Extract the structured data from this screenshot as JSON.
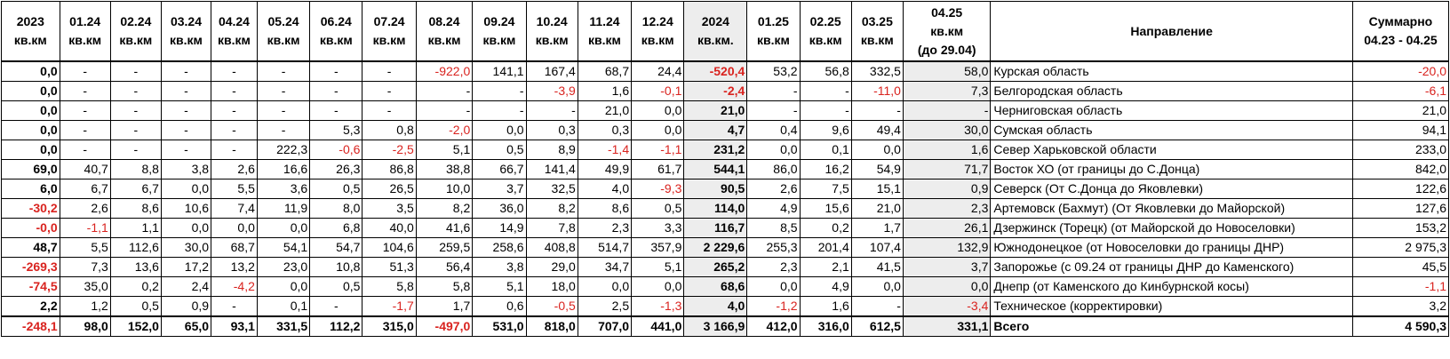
{
  "header": {
    "columns": [
      {
        "lines": [
          "2023",
          "кв.км"
        ]
      },
      {
        "lines": [
          "01.24",
          "кв.км"
        ]
      },
      {
        "lines": [
          "02.24",
          "кв.км"
        ]
      },
      {
        "lines": [
          "03.24",
          "кв.км"
        ]
      },
      {
        "lines": [
          "04.24",
          "кв.км"
        ]
      },
      {
        "lines": [
          "05.24",
          "кв.км"
        ]
      },
      {
        "lines": [
          "06.24",
          "кв.км"
        ]
      },
      {
        "lines": [
          "07.24",
          "кв.км"
        ]
      },
      {
        "lines": [
          "08.24",
          "кв.км"
        ]
      },
      {
        "lines": [
          "09.24",
          "кв.км"
        ]
      },
      {
        "lines": [
          "10.24",
          "кв.км"
        ]
      },
      {
        "lines": [
          "11.24",
          "кв.км"
        ]
      },
      {
        "lines": [
          "12.24",
          "кв.км"
        ]
      },
      {
        "lines": [
          "2024",
          "кв.км."
        ]
      },
      {
        "lines": [
          "01.25",
          "кв.км"
        ]
      },
      {
        "lines": [
          "02.25",
          "кв.км"
        ]
      },
      {
        "lines": [
          "03.25",
          "кв.км"
        ]
      },
      {
        "lines": [
          "04.25",
          "кв.км",
          "(до 29.04)"
        ]
      },
      {
        "lines": [
          "Направление"
        ]
      },
      {
        "lines": [
          "Суммарно",
          "04.23 - 04.25"
        ]
      }
    ]
  },
  "rows": [
    {
      "values": [
        "0,0",
        "-",
        "-",
        "-",
        "-",
        "-",
        "-",
        "-",
        "-922,0",
        "141,1",
        "167,4",
        "68,7",
        "24,4",
        "-520,4",
        "53,2",
        "56,8",
        "332,5",
        "58,0"
      ],
      "direction": "Курская область",
      "total": "-20,0"
    },
    {
      "values": [
        "0,0",
        "-",
        "-",
        "-",
        "-",
        "-",
        "-",
        "-",
        "-",
        "-",
        "-3,9",
        "1,6",
        "-0,1",
        "-2,4",
        "-",
        "-",
        "-11,0",
        "7,3"
      ],
      "direction": "Белгородская область",
      "total": "-6,1"
    },
    {
      "values": [
        "0,0",
        "-",
        "-",
        "-",
        "-",
        "-",
        "-",
        "-",
        "-",
        "-",
        "-",
        "21,0",
        "0,0",
        "21,0",
        "-",
        "-",
        "-",
        "-"
      ],
      "direction": "Черниговская область",
      "total": "21,0"
    },
    {
      "values": [
        "0,0",
        "-",
        "-",
        "-",
        "-",
        "-",
        "5,3",
        "0,8",
        "-2,0",
        "0,0",
        "0,3",
        "0,3",
        "0,0",
        "4,7",
        "0,4",
        "9,6",
        "49,4",
        "30,0"
      ],
      "direction": "Сумская область",
      "total": "94,1"
    },
    {
      "values": [
        "0,0",
        "-",
        "-",
        "-",
        "-",
        "222,3",
        "-0,6",
        "-2,5",
        "5,1",
        "0,5",
        "8,9",
        "-1,4",
        "-1,1",
        "231,2",
        "0,0",
        "0,1",
        "0,0",
        "1,6"
      ],
      "direction": "Север Харьковской области",
      "total": "233,0"
    },
    {
      "values": [
        "69,0",
        "40,7",
        "8,8",
        "3,8",
        "2,6",
        "16,6",
        "26,3",
        "86,8",
        "38,8",
        "66,7",
        "141,4",
        "49,9",
        "61,7",
        "544,1",
        "86,0",
        "16,2",
        "54,9",
        "71,7"
      ],
      "direction": "Восток ХО (от границы до С.Донца)",
      "total": "842,0"
    },
    {
      "values": [
        "6,0",
        "6,7",
        "6,7",
        "0,0",
        "5,5",
        "3,6",
        "0,5",
        "26,5",
        "10,0",
        "3,7",
        "32,5",
        "4,0",
        "-9,3",
        "90,5",
        "2,6",
        "7,5",
        "15,1",
        "0,9"
      ],
      "direction": "Северск (От С.Донца до Яковлевки)",
      "total": "122,6"
    },
    {
      "values": [
        "-30,2",
        "2,6",
        "8,6",
        "10,6",
        "7,4",
        "11,9",
        "8,0",
        "3,5",
        "8,2",
        "36,0",
        "8,2",
        "8,6",
        "0,5",
        "114,0",
        "4,9",
        "15,6",
        "21,0",
        "2,3"
      ],
      "direction": "Артемовск (Бахмут) (От Яковлевки до Майорской)",
      "total": "127,6"
    },
    {
      "values": [
        "-0,0",
        "-1,1",
        "1,1",
        "0,0",
        "0,0",
        "0,0",
        "6,8",
        "40,0",
        "41,6",
        "14,9",
        "7,8",
        "2,3",
        "3,3",
        "116,7",
        "8,5",
        "0,2",
        "1,7",
        "26,1"
      ],
      "direction": "Дзержинск (Торецк) (от Майорской до Новоселовки)",
      "total": "153,2"
    },
    {
      "values": [
        "48,7",
        "5,5",
        "112,6",
        "30,0",
        "68,7",
        "54,1",
        "54,7",
        "104,6",
        "259,5",
        "258,6",
        "408,8",
        "514,7",
        "357,9",
        "2 229,6",
        "255,3",
        "201,4",
        "107,4",
        "132,9"
      ],
      "direction": "Южнодонецкое (от Новоселовки до границы ДНР)",
      "total": "2 975,3"
    },
    {
      "values": [
        "-269,3",
        "7,3",
        "13,6",
        "17,2",
        "13,2",
        "23,0",
        "10,8",
        "51,3",
        "56,4",
        "3,8",
        "29,0",
        "34,7",
        "5,1",
        "265,2",
        "2,3",
        "2,1",
        "41,5",
        "3,7"
      ],
      "direction": "Запорожье (с 09.24 от границы ДНР до Каменского)",
      "total": "45,5"
    },
    {
      "values": [
        "-74,5",
        "35,0",
        "0,2",
        "2,4",
        "-4,2",
        "0,0",
        "0,5",
        "5,8",
        "5,8",
        "5,1",
        "18,0",
        "0,0",
        "0,0",
        "68,6",
        "0,0",
        "4,9",
        "0,0",
        "0,0"
      ],
      "direction": "Днепр (от Каменского до Кинбурнской косы)",
      "total": "-1,1"
    },
    {
      "values": [
        "2,2",
        "1,2",
        "0,5",
        "0,9",
        "-",
        "0,1",
        "-",
        "-1,7",
        "1,7",
        "0,6",
        "-0,5",
        "2,5",
        "-1,3",
        "4,0",
        "-1,2",
        "1,6",
        "-",
        "-3,4"
      ],
      "direction": "Техническое (корректировки)",
      "total": "3,2"
    }
  ],
  "total_row": {
    "values": [
      "-248,1",
      "98,0",
      "152,0",
      "65,0",
      "93,1",
      "331,5",
      "112,2",
      "315,0",
      "-497,0",
      "531,0",
      "818,0",
      "707,0",
      "441,0",
      "3 166,9",
      "412,0",
      "316,0",
      "612,5",
      "331,1"
    ],
    "direction": "Всего",
    "total": "4 590,3"
  },
  "colors": {
    "negative": "#d9231f",
    "shaded_column": "#ededed",
    "text": "#000000"
  }
}
